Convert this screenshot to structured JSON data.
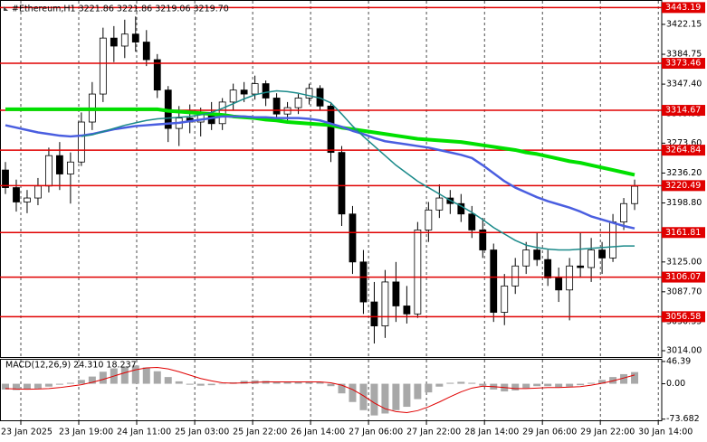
{
  "chart_data": [
    {
      "type": "candlestick",
      "title": "#Ethereum,H1  3221.86 3221.86 3219.06 3219.70",
      "up_color": "#ffffff",
      "down_color": "#000000",
      "grid": true,
      "xlim": [
        -0.5,
        60.5
      ],
      "xticks": [
        {
          "value": 1.42,
          "label": "23 Jan 2025"
        },
        {
          "value": 6.76,
          "label": "23 Jan 19:00"
        },
        {
          "value": 12.1,
          "label": "24 Jan 11:00"
        },
        {
          "value": 17.45,
          "label": "25 Jan 03:00"
        },
        {
          "value": 22.79,
          "label": "25 Jan 22:00"
        },
        {
          "value": 28.13,
          "label": "26 Jan 14:00"
        },
        {
          "value": 33.47,
          "label": "27 Jan 06:00"
        },
        {
          "value": 38.81,
          "label": "27 Jan 22:00"
        },
        {
          "value": 44.16,
          "label": "28 Jan 14:00"
        },
        {
          "value": 49.5,
          "label": "29 Jan 06:00"
        },
        {
          "value": 54.84,
          "label": "29 Jan 22:00"
        },
        {
          "value": 60.18,
          "label": "30 Jan 14:00"
        }
      ],
      "ylim": [
        3006.1,
        3451.5
      ],
      "yticks": [
        3422.15,
        3384.75,
        {
          "value": 3347.4,
          "label": "3347.40"
        },
        3309.95,
        {
          "value": 3273.6,
          "label": "3273.60"
        },
        {
          "value": 3236.2,
          "label": "3236.20"
        },
        {
          "value": 3198.8,
          "label": "3198.80"
        },
        {
          "value": 3125,
          "label": "3125.00"
        },
        {
          "value": 3087.7,
          "label": "3087.70"
        },
        3050.35,
        {
          "value": 3014,
          "label": "3014.00"
        }
      ],
      "open": [
        3240,
        3218,
        3200,
        3205,
        3220,
        3258,
        3235,
        3250,
        3300,
        3335,
        3405,
        3395,
        3410,
        3400,
        3378,
        3340,
        3292,
        3305,
        3300,
        3310,
        3298,
        3325,
        3340,
        3335,
        3348,
        3330,
        3310,
        3318,
        3330,
        3342,
        3320,
        3262,
        3185,
        3125,
        3075,
        3045,
        3100,
        3070,
        3060,
        3165,
        3190,
        3205,
        3198,
        3185,
        3165,
        3140,
        3062,
        3095,
        3120,
        3140,
        3128,
        3105,
        3090,
        3120,
        3118,
        3140,
        3130,
        3175,
        3198
      ],
      "high": [
        3250,
        3228,
        3215,
        3230,
        3268,
        3275,
        3262,
        3312,
        3350,
        3418,
        3420,
        3428,
        3432,
        3415,
        3385,
        3345,
        3320,
        3322,
        3318,
        3325,
        3330,
        3348,
        3350,
        3358,
        3352,
        3336,
        3325,
        3335,
        3348,
        3346,
        3325,
        3270,
        3195,
        3140,
        3100,
        3115,
        3125,
        3095,
        3175,
        3200,
        3222,
        3215,
        3210,
        3195,
        3180,
        3148,
        3110,
        3130,
        3150,
        3162,
        3140,
        3118,
        3130,
        3162,
        3155,
        3150,
        3185,
        3205,
        3228
      ],
      "low": [
        3210,
        3188,
        3186,
        3196,
        3212,
        3215,
        3198,
        3245,
        3290,
        3325,
        3375,
        3380,
        3388,
        3370,
        3330,
        3275,
        3270,
        3286,
        3282,
        3290,
        3290,
        3315,
        3325,
        3328,
        3320,
        3300,
        3300,
        3310,
        3322,
        3315,
        3250,
        3170,
        3110,
        3060,
        3023,
        3030,
        3050,
        3048,
        3055,
        3150,
        3180,
        3185,
        3175,
        3155,
        3130,
        3050,
        3046,
        3085,
        3110,
        3120,
        3095,
        3075,
        3052,
        3105,
        3100,
        3110,
        3125,
        3165,
        3190
      ],
      "close": [
        3218,
        3200,
        3205,
        3220,
        3258,
        3235,
        3250,
        3300,
        3335,
        3405,
        3395,
        3410,
        3400,
        3378,
        3340,
        3292,
        3305,
        3300,
        3310,
        3298,
        3325,
        3340,
        3335,
        3348,
        3330,
        3310,
        3318,
        3330,
        3342,
        3320,
        3262,
        3185,
        3125,
        3075,
        3045,
        3100,
        3070,
        3060,
        3165,
        3190,
        3205,
        3198,
        3185,
        3165,
        3140,
        3062,
        3095,
        3120,
        3140,
        3128,
        3105,
        3090,
        3120,
        3118,
        3140,
        3130,
        3175,
        3198,
        3219.7
      ],
      "lines": [
        {
          "color": "#00e000",
          "values": [
            3316,
            3316,
            3316,
            3316,
            3316,
            3316,
            3316,
            3316,
            3316,
            3316,
            3316,
            3316,
            3316,
            3316,
            3316,
            3314,
            3313,
            3312,
            3311,
            3310,
            3309,
            3307,
            3306,
            3305,
            3303,
            3302,
            3300,
            3299,
            3298,
            3297,
            3296,
            3293,
            3291,
            3289,
            3287,
            3285,
            3283,
            3281,
            3279,
            3278,
            3277,
            3276,
            3275,
            3273,
            3271,
            3269,
            3267,
            3265,
            3262,
            3260,
            3257,
            3254,
            3251,
            3249,
            3246,
            3243,
            3240,
            3237,
            3234
          ]
        },
        {
          "color": "#4a5ee0",
          "values": [
            3296,
            3293,
            3290,
            3287,
            3285,
            3283,
            3282,
            3283,
            3285,
            3288,
            3291,
            3293,
            3295,
            3296,
            3297,
            3298,
            3299,
            3301,
            3303,
            3305,
            3307,
            3307,
            3307,
            3306,
            3306,
            3305,
            3305,
            3305,
            3304,
            3302,
            3298,
            3294,
            3289,
            3285,
            3280,
            3276,
            3274,
            3272,
            3270,
            3268,
            3265,
            3262,
            3259,
            3255,
            3246,
            3236,
            3226,
            3218,
            3212,
            3206,
            3201,
            3197,
            3193,
            3188,
            3182,
            3178,
            3174,
            3170,
            3167
          ]
        },
        {
          "color": "#1a8a8a",
          "values": [
            null,
            null,
            null,
            null,
            null,
            null,
            null,
            3282,
            3284,
            3288,
            3292,
            3296,
            3299,
            3302,
            3304,
            3305,
            3306,
            3307,
            3309,
            3312,
            3317,
            3323,
            3329,
            3334,
            3337,
            3339,
            3338,
            3336,
            3333,
            3330,
            3324,
            3310,
            3295,
            3282,
            3270,
            3258,
            3246,
            3236,
            3226,
            3218,
            3210,
            3202,
            3195,
            3187,
            3178,
            3168,
            3160,
            3152,
            3146,
            3143,
            3141,
            3140,
            3140,
            3141,
            3142,
            3143,
            3144,
            3145,
            3145
          ]
        }
      ],
      "levels": {
        "color": "#e00000",
        "values": [
          3443.19,
          3373.46,
          3314.67,
          3264.84,
          3220.49,
          3161.81,
          3106.07,
          3056.58
        ]
      }
    },
    {
      "type": "macd",
      "title": "MACD(12,26,9) 24.310 18.237",
      "xlim": [
        -0.5,
        60.5
      ],
      "grid": true,
      "ylim": [
        -78,
        50
      ],
      "yticks": [
        46.39,
        {
          "value": 0,
          "label": "0.00"
        },
        -73.682
      ],
      "histogram": {
        "color": "#a8a8a8",
        "values": [
          -12,
          -13,
          -12,
          -10,
          -6,
          -2,
          2,
          8,
          15,
          25,
          32,
          36,
          38,
          34,
          26,
          14,
          5,
          -2,
          -4,
          -3,
          -1,
          3,
          6,
          7,
          6,
          4,
          3,
          4,
          5,
          4,
          -5,
          -20,
          -38,
          -55,
          -66,
          -62,
          -55,
          -48,
          -32,
          -18,
          -6,
          2,
          4,
          2,
          -4,
          -12,
          -16,
          -14,
          -9,
          -5,
          -5,
          -7,
          -6,
          -3,
          2,
          8,
          14,
          20,
          24.31
        ]
      },
      "signal": {
        "color": "#e00000",
        "values": [
          -10,
          -11,
          -11.5,
          -11,
          -10,
          -8,
          -5,
          -2,
          3,
          9,
          16,
          23,
          29,
          33,
          34,
          31,
          25,
          18,
          11,
          6,
          2,
          1,
          2,
          3,
          4,
          4,
          4,
          4,
          4,
          4,
          2,
          -3,
          -12,
          -25,
          -40,
          -52,
          -58,
          -60,
          -56,
          -48,
          -38,
          -27,
          -17,
          -9,
          -5,
          -6,
          -8,
          -10,
          -10,
          -9,
          -8,
          -8,
          -7,
          -6,
          -3,
          1,
          6,
          12,
          18.237
        ]
      }
    }
  ]
}
